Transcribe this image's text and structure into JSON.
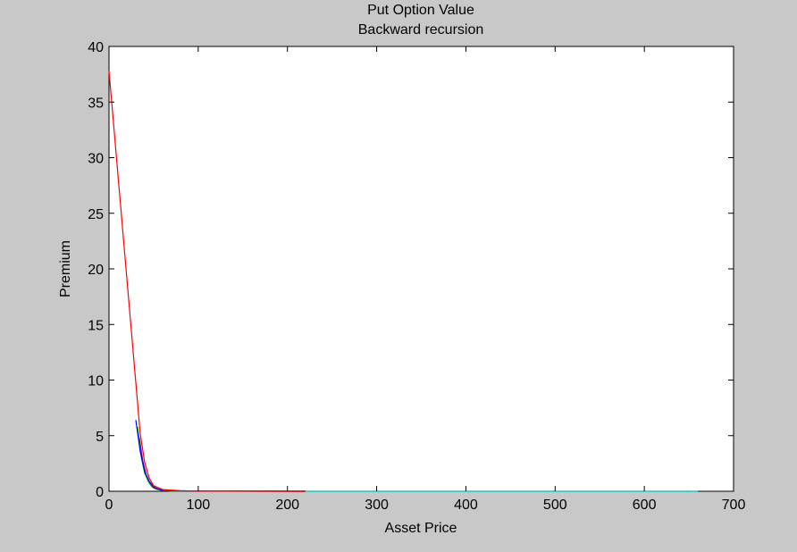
{
  "chart_data": {
    "type": "line",
    "title": "Put Option Value",
    "subtitle": "Backward recursion",
    "xlabel": "Asset Price",
    "ylabel": "Premium",
    "xlim": [
      0,
      700
    ],
    "ylim": [
      0,
      40
    ],
    "x_ticks": [
      0,
      100,
      200,
      300,
      400,
      500,
      600,
      700
    ],
    "y_ticks": [
      0,
      5,
      10,
      15,
      20,
      25,
      30,
      35,
      40
    ],
    "grid": false,
    "legend": "none",
    "series": [
      {
        "color": "#ff0000",
        "x": [
          0,
          35,
          40,
          45,
          50,
          60,
          80,
          100,
          150,
          220
        ],
        "y": [
          37.8,
          5.2,
          2.6,
          1.2,
          0.5,
          0.15,
          0.05,
          0.02,
          0.01,
          0
        ]
      },
      {
        "color": "#0000ff",
        "x": [
          30,
          35,
          40,
          45,
          50,
          55,
          60,
          80,
          100,
          150,
          220
        ],
        "y": [
          6.4,
          3.6,
          1.8,
          0.9,
          0.4,
          0.2,
          0.1,
          0.04,
          0.02,
          0.01,
          0
        ]
      },
      {
        "color": "#00aa00",
        "x": [
          32,
          36,
          40,
          45,
          50,
          55,
          60,
          80,
          120,
          180,
          220
        ],
        "y": [
          5.8,
          3.2,
          1.6,
          0.8,
          0.35,
          0.18,
          0.08,
          0.03,
          0.015,
          0.005,
          0
        ]
      },
      {
        "color": "#8800aa",
        "x": [
          34,
          38,
          42,
          46,
          50,
          56,
          62,
          80,
          120,
          220
        ],
        "y": [
          4.8,
          2.7,
          1.4,
          0.7,
          0.3,
          0.15,
          0.07,
          0.03,
          0.01,
          0
        ]
      },
      {
        "color": "#cc8800",
        "x": [
          35,
          39,
          43,
          47,
          52,
          58,
          65,
          90,
          150,
          220
        ],
        "y": [
          4.0,
          2.2,
          1.1,
          0.55,
          0.25,
          0.12,
          0.05,
          0.02,
          0.01,
          0
        ]
      },
      {
        "color": "#00bfbf",
        "x": [
          36,
          40,
          44,
          48,
          53,
          60,
          70,
          100,
          200,
          300,
          400,
          500,
          600,
          660
        ],
        "y": [
          3.2,
          1.7,
          0.85,
          0.4,
          0.18,
          0.08,
          0.03,
          0.01,
          0,
          0,
          0,
          0,
          0,
          0
        ]
      }
    ]
  }
}
